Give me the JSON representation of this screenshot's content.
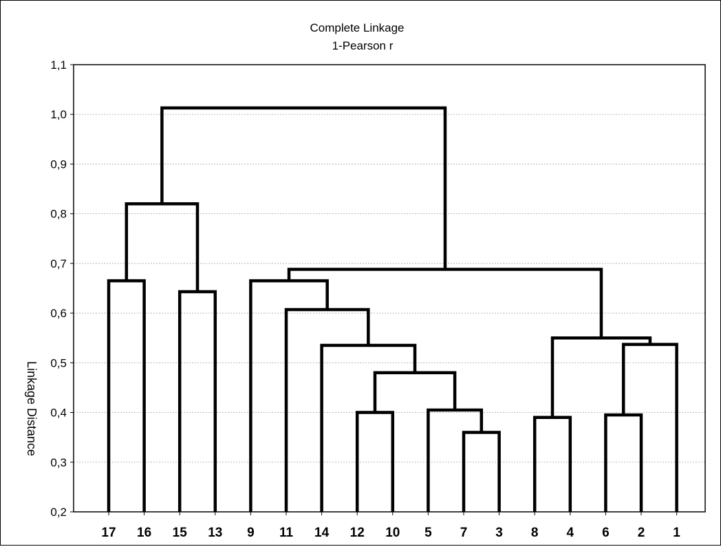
{
  "chart_data": {
    "type": "dendrogram",
    "title": "Complete Linkage",
    "subtitle": "1-Pearson r",
    "xlabel": "",
    "ylabel": "Linkage Distance",
    "ylim": [
      0.2,
      1.1
    ],
    "yticks": [
      "0,2",
      "0,3",
      "0,4",
      "0,5",
      "0,6",
      "0,7",
      "0,8",
      "0,9",
      "1,0",
      "1,1"
    ],
    "grid": true,
    "leaves": [
      "17",
      "16",
      "15",
      "13",
      "9",
      "11",
      "14",
      "12",
      "10",
      "5",
      "7",
      "3",
      "8",
      "4",
      "6",
      "2",
      "1"
    ],
    "merges": [
      {
        "left": "7",
        "right": "3",
        "height": 0.36
      },
      {
        "left": "12",
        "right": "10",
        "height": 0.4
      },
      {
        "left": "8",
        "right": "4",
        "height": 0.39
      },
      {
        "left": "6",
        "right": "2",
        "height": 0.395
      },
      {
        "left": "5",
        "right": "7-3",
        "height": 0.405
      },
      {
        "left": "12-10",
        "right": "5-7-3",
        "height": 0.48
      },
      {
        "left": "14",
        "right": "12-10-5-7-3",
        "height": 0.535
      },
      {
        "left": "6-2",
        "right": "1",
        "height": 0.537
      },
      {
        "left": "8-4",
        "right": "6-2-1",
        "height": 0.55
      },
      {
        "left": "11",
        "right": "14-12-10-5-7-3",
        "height": 0.607
      },
      {
        "left": "15",
        "right": "13",
        "height": 0.643
      },
      {
        "left": "17",
        "right": "16",
        "height": 0.665
      },
      {
        "left": "9",
        "right": "11-14-12-10-5-7-3",
        "height": 0.665
      },
      {
        "left": "9-11-14-12-10-5-7-3",
        "right": "8-4-6-2-1",
        "height": 0.688
      },
      {
        "left": "17-16",
        "right": "15-13",
        "height": 0.82
      },
      {
        "left": "17-16-15-13",
        "right": "9-11-14-12-10-5-7-3-8-4-6-2-1",
        "height": 1.013
      }
    ]
  }
}
